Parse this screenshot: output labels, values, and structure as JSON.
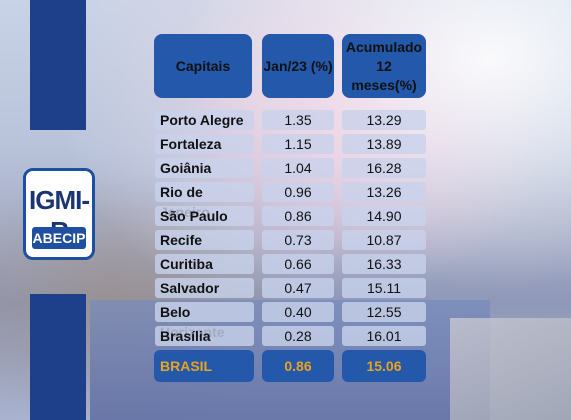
{
  "logo": {
    "main": "IGMI-R",
    "sub": "ABECIP"
  },
  "table": {
    "headers": {
      "city": "Capitais",
      "month": "Jan/23 (%)",
      "accum_line1": "Acumulado",
      "accum_line2": "12 meses(%)"
    },
    "rows": [
      {
        "city": "Porto Alegre",
        "month": "1.35",
        "accum": "13.29"
      },
      {
        "city": "Fortaleza",
        "month": "1.15",
        "accum": "13.89"
      },
      {
        "city": "Goiânia",
        "month": "1.04",
        "accum": "16.28"
      },
      {
        "city": "Rio de Janeiro",
        "month": "0.96",
        "accum": "13.26"
      },
      {
        "city": "São Paulo",
        "month": "0.86",
        "accum": "14.90"
      },
      {
        "city": "Recife",
        "month": "0.73",
        "accum": "10.87"
      },
      {
        "city": "Curitiba",
        "month": "0.66",
        "accum": "16.33"
      },
      {
        "city": "Salvador",
        "month": "0.47",
        "accum": "15.11"
      },
      {
        "city": "Belo Horizonte",
        "month": "0.40",
        "accum": "12.55"
      },
      {
        "city": "Brasília",
        "month": "0.28",
        "accum": "16.01"
      }
    ],
    "total": {
      "city": "BRASIL",
      "month": "0.86",
      "accum": "15.06"
    }
  },
  "colors": {
    "brand_blue": "#2458aa",
    "dark_blue": "#1e3f8a",
    "highlight": "#e8a321"
  }
}
